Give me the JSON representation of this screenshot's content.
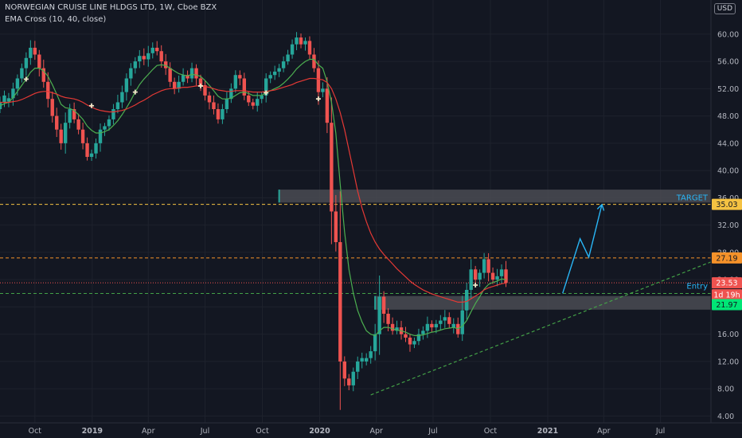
{
  "header": {
    "title": "NORWEGIAN CRUISE LINE HLDGS LTD, 1W, Cboe BZX",
    "indicator": "EMA Cross (10, 40, close)",
    "currency": "USD"
  },
  "colors": {
    "background": "#131722",
    "up": "#26a69a",
    "down": "#ef5350",
    "ema_fast": "#4caf50",
    "ema_slow": "#e53935",
    "target_line": "#f5c242",
    "resistance_line": "#f5922a",
    "support_line": "#43a047",
    "projection": "#29b6f6",
    "zone": "#4a4b52"
  },
  "chart_data": {
    "type": "candlestick",
    "ylim": [
      3,
      65
    ],
    "y_ticks": [
      4,
      8,
      12,
      16,
      20,
      24,
      28,
      32,
      36,
      40,
      44,
      48,
      52,
      56,
      60
    ],
    "y_tick_labels": [
      "4.00",
      "8.00",
      "12.00",
      "16.00",
      "20.00",
      "24.00",
      "28.00",
      "32.00",
      "36.00",
      "40.00",
      "44.00",
      "48.00",
      "52.00",
      "56.00",
      "60.00"
    ],
    "x_range": [
      "2018-08-06",
      "2021-09-20"
    ],
    "x_ticks": [
      {
        "date": "2018-10-01",
        "label": "Oct"
      },
      {
        "date": "2019-01-01",
        "label": "2019"
      },
      {
        "date": "2019-04-01",
        "label": "Apr"
      },
      {
        "date": "2019-07-01",
        "label": "Jul"
      },
      {
        "date": "2019-10-01",
        "label": "Oct"
      },
      {
        "date": "2020-01-01",
        "label": "2020"
      },
      {
        "date": "2020-04-01",
        "label": "Apr"
      },
      {
        "date": "2020-07-01",
        "label": "Jul"
      },
      {
        "date": "2020-10-01",
        "label": "Oct"
      },
      {
        "date": "2021-01-01",
        "label": "2021"
      },
      {
        "date": "2021-04-01",
        "label": "Apr"
      },
      {
        "date": "2021-07-01",
        "label": "Jul"
      }
    ],
    "first_candle": "2018-08-06",
    "interval": "1W",
    "closes": [
      50.0,
      51.0,
      50.6,
      52.0,
      53.5,
      55.0,
      56.5,
      58.0,
      57.0,
      55.0,
      53.0,
      50.5,
      48.0,
      46.0,
      44.0,
      47.0,
      49.0,
      47.5,
      46.0,
      44.0,
      42.0,
      42.5,
      44.0,
      46.0,
      46.5,
      47.5,
      49.0,
      50.0,
      51.5,
      53.5,
      55.0,
      56.0,
      56.8,
      56.3,
      57.2,
      58.0,
      57.5,
      56.0,
      55.0,
      53.0,
      52.0,
      53.0,
      54.0,
      53.5,
      55.0,
      53.5,
      52.5,
      51.0,
      50.0,
      49.0,
      47.5,
      49.0,
      50.5,
      52.0,
      54.0,
      53.5,
      51.0,
      50.0,
      49.5,
      50.5,
      51.0,
      53.5,
      54.0,
      54.5,
      55.0,
      56.0,
      57.0,
      58.5,
      59.5,
      58.5,
      59.0,
      57.0,
      55.0,
      51.5,
      52.0,
      47.0,
      34.0,
      29.5,
      12.0,
      9.5,
      8.5,
      10.5,
      12.0,
      12.5,
      12.5,
      13.5,
      16.0,
      21.5,
      19.0,
      17.5,
      16.5,
      17.0,
      16.0,
      15.5,
      14.5,
      15.0,
      16.0,
      16.5,
      17.5,
      17.0,
      17.5,
      18.0,
      18.5,
      17.5,
      17.5,
      16.0,
      19.5,
      22.5,
      25.5,
      24.0,
      25.0,
      27.0,
      25.0,
      24.0,
      24.5,
      25.5,
      23.53
    ],
    "series": [
      {
        "name": "EMA 10",
        "values": [
          49.5,
          49.8,
          50.0,
          50.7,
          51.6,
          52.5,
          53.4,
          54.4,
          55.0,
          55.0,
          54.6,
          53.8,
          52.6,
          51.2,
          49.7,
          49.2,
          49.1,
          48.8,
          48.2,
          47.5,
          46.5,
          45.9,
          45.5,
          45.5,
          45.7,
          46.0,
          46.6,
          47.3,
          48.2,
          49.2,
          50.3,
          51.5,
          52.6,
          53.4,
          54.1,
          54.8,
          55.4,
          55.5,
          55.4,
          55.0,
          54.6,
          54.2,
          54.0,
          53.9,
          54.1,
          54.0,
          53.8,
          53.2,
          52.5,
          51.7,
          50.9,
          50.5,
          50.5,
          50.6,
          51.0,
          51.4,
          51.5,
          51.3,
          51.0,
          51.0,
          51.0,
          51.4,
          51.7,
          52.0,
          52.3,
          52.8,
          53.4,
          54.1,
          54.9,
          55.5,
          56.0,
          56.3,
          56.3,
          55.5,
          55.0,
          53.0,
          50.0,
          45.5,
          38.0,
          31.0,
          25.5,
          22.0,
          19.5,
          17.8,
          16.5,
          16.0,
          15.8,
          16.5,
          17.0,
          17.0,
          16.8,
          16.6,
          16.5,
          16.3,
          16.0,
          15.8,
          15.8,
          15.9,
          16.1,
          16.3,
          16.4,
          16.6,
          16.8,
          16.9,
          17.0,
          16.8,
          17.2,
          18.0,
          19.3,
          20.5,
          21.5,
          22.6,
          23.3,
          23.6,
          23.8,
          24.1,
          24.0
        ]
      },
      {
        "name": "EMA 40",
        "values": [
          50.0,
          50.0,
          50.0,
          50.1,
          50.2,
          50.4,
          50.7,
          51.0,
          51.3,
          51.5,
          51.6,
          51.6,
          51.4,
          51.2,
          50.9,
          50.7,
          50.6,
          50.5,
          50.3,
          50.0,
          49.6,
          49.3,
          49.0,
          48.8,
          48.7,
          48.6,
          48.6,
          48.7,
          48.8,
          49.0,
          49.3,
          49.6,
          50.0,
          50.3,
          50.7,
          51.1,
          51.4,
          51.7,
          51.9,
          52.0,
          52.0,
          52.1,
          52.2,
          52.2,
          52.3,
          52.4,
          52.4,
          52.3,
          52.2,
          52.0,
          51.8,
          51.7,
          51.6,
          51.6,
          51.7,
          51.7,
          51.7,
          51.6,
          51.5,
          51.5,
          51.5,
          51.6,
          51.7,
          51.8,
          52.0,
          52.2,
          52.4,
          52.6,
          52.9,
          53.1,
          53.3,
          53.5,
          53.5,
          53.4,
          53.3,
          52.9,
          52.0,
          50.5,
          48.5,
          46.0,
          43.0,
          40.0,
          37.0,
          34.5,
          32.5,
          30.8,
          29.5,
          28.5,
          27.7,
          27.0,
          26.3,
          25.6,
          25.0,
          24.4,
          23.8,
          23.3,
          22.9,
          22.5,
          22.2,
          21.9,
          21.7,
          21.5,
          21.3,
          21.1,
          20.9,
          20.7,
          20.7,
          20.8,
          21.2,
          21.6,
          22.0,
          22.5,
          22.8,
          23.0,
          23.2,
          23.4,
          23.5
        ]
      }
    ],
    "crosses": [
      {
        "i": 6,
        "v": 53.4
      },
      {
        "i": 21,
        "v": 49.5
      },
      {
        "i": 31,
        "v": 51.5
      },
      {
        "i": 46,
        "v": 52.4
      },
      {
        "i": 61,
        "v": 51.4
      },
      {
        "i": 73,
        "v": 50.5
      },
      {
        "i": 109,
        "v": 23.2
      }
    ],
    "levels": [
      {
        "name": "target",
        "value": 35.03,
        "label": "35.03",
        "color": "#f5c242",
        "text_color": "#131722"
      },
      {
        "name": "resistance",
        "value": 27.19,
        "label": "27.19",
        "color": "#f5922a",
        "text_color": "#131722"
      },
      {
        "name": "last-price",
        "value": 23.53,
        "label": "23.53",
        "color": "#ef5350",
        "text_color": "#ffffff"
      },
      {
        "name": "countdown",
        "value": 21.9,
        "label": "1d 19h",
        "color": "#ef5350",
        "text_color": "#ffffff"
      },
      {
        "name": "entry",
        "value": 21.97,
        "label": "21.97",
        "color": "#00e676",
        "text_color": "#131722"
      }
    ],
    "zones": [
      {
        "name": "target-zone",
        "from": "2019-10-28",
        "to": "2021-09-20",
        "low": 35.3,
        "high": 37.2
      },
      {
        "name": "entry-zone",
        "from": "2020-03-30",
        "to": "2021-09-20",
        "low": 19.6,
        "high": 21.6
      }
    ],
    "trendline": {
      "start": {
        "date": "2020-03-23",
        "value": 7.1
      },
      "end": {
        "date": "2021-09-20",
        "value": 26.6
      }
    },
    "projection": [
      {
        "date": "2021-01-25",
        "value": 22.0
      },
      {
        "date": "2021-02-22",
        "value": 30.0
      },
      {
        "date": "2021-03-08",
        "value": 27.3
      },
      {
        "date": "2021-03-29",
        "value": 35.0
      }
    ],
    "annotations": [
      {
        "name": "target-label",
        "text": "TARGET",
        "value": 36.0
      },
      {
        "name": "entry-label",
        "text": "Entry",
        "value": 23.0
      }
    ]
  }
}
